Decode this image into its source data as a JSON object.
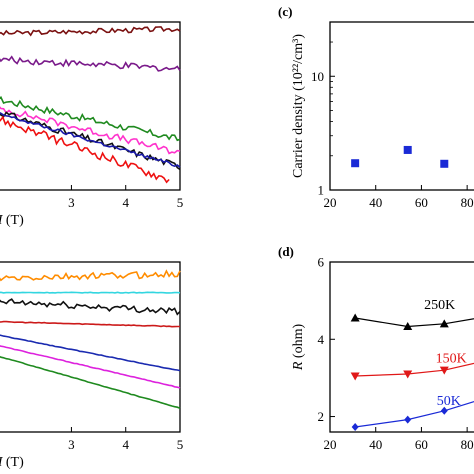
{
  "chart_data": [
    {
      "id": "a",
      "type": "line",
      "xlabel": "H (T)",
      "xlim": [
        1.5,
        5.0
      ],
      "ylim": [
        0,
        1
      ],
      "xticks": [
        3,
        4,
        5
      ],
      "tick_labels": [
        "3",
        "4",
        "5"
      ],
      "series": [
        {
          "color": "#7a1010",
          "x": [
            1.5,
            5.0
          ],
          "y": [
            0.93,
            0.96
          ],
          "noise": 0.015
        },
        {
          "color": "#7a1a8a",
          "x": [
            1.5,
            5.0
          ],
          "y": [
            0.78,
            0.72
          ],
          "noise": 0.02
        },
        {
          "color": "#1f8a1f",
          "x": [
            1.5,
            5.0
          ],
          "y": [
            0.55,
            0.3
          ],
          "noise": 0.02
        },
        {
          "color": "#ff33cc",
          "x": [
            1.5,
            5.0
          ],
          "y": [
            0.5,
            0.22
          ],
          "noise": 0.02
        },
        {
          "color": "#101010",
          "x": [
            1.5,
            5.0
          ],
          "y": [
            0.48,
            0.14
          ],
          "noise": 0.02
        },
        {
          "color": "#1a1aaa",
          "x": [
            1.5,
            5.0
          ],
          "y": [
            0.47,
            0.14
          ],
          "noise": 0.01
        },
        {
          "color": "#ee1111",
          "x": [
            1.5,
            4.8
          ],
          "y": [
            0.44,
            0.06
          ],
          "noise": 0.025
        }
      ]
    },
    {
      "id": "b",
      "type": "line",
      "xlabel": "H (T)",
      "xlim": [
        1.5,
        5.0
      ],
      "ylim": [
        0,
        1
      ],
      "xticks": [
        3,
        4,
        5
      ],
      "tick_labels": [
        "3",
        "4",
        "5"
      ],
      "series": [
        {
          "color": "#ff8c00",
          "x": [
            1.5,
            5.0
          ],
          "y": [
            0.9,
            0.93
          ],
          "noise": 0.02
        },
        {
          "color": "#33d6e0",
          "x": [
            1.5,
            5.0
          ],
          "y": [
            0.82,
            0.82
          ],
          "noise": 0.004
        },
        {
          "color": "#101010",
          "x": [
            1.5,
            5.0
          ],
          "y": [
            0.77,
            0.71
          ],
          "noise": 0.02
        },
        {
          "color": "#cc1a1a",
          "x": [
            1.5,
            5.0
          ],
          "y": [
            0.65,
            0.62
          ],
          "noise": 0.004
        },
        {
          "color": "#1a2ab0",
          "x": [
            1.5,
            5.0
          ],
          "y": [
            0.58,
            0.36
          ],
          "noise": 0.003
        },
        {
          "color": "#dd22dd",
          "x": [
            1.5,
            5.0
          ],
          "y": [
            0.52,
            0.26
          ],
          "noise": 0.003
        },
        {
          "color": "#1f8a1f",
          "x": [
            1.5,
            5.0
          ],
          "y": [
            0.46,
            0.14
          ],
          "noise": 0.003
        }
      ]
    },
    {
      "id": "c",
      "type": "scatter",
      "panel_label": "(c)",
      "ylabel": "Carrier density (10²²/cm³)",
      "xlim": [
        20,
        90
      ],
      "ylim": [
        1,
        30
      ],
      "yscale": "log",
      "xticks": [
        20,
        40,
        60,
        80
      ],
      "xtick_labels": [
        "20",
        "40",
        "60",
        "80"
      ],
      "yticks": [
        1,
        10
      ],
      "ytick_labels": [
        "1",
        "10"
      ],
      "series": [
        {
          "color": "#1a2ad6",
          "marker": "square",
          "x": [
            31,
            54,
            70
          ],
          "y": [
            1.72,
            2.25,
            1.7
          ]
        }
      ]
    },
    {
      "id": "d",
      "type": "line",
      "panel_label": "(d)",
      "ylabel": "R (ohm)",
      "xlim": [
        20,
        90
      ],
      "ylim": [
        1.6,
        6
      ],
      "xticks": [
        20,
        40,
        60,
        80
      ],
      "xtick_labels": [
        "20",
        "40",
        "60",
        "80"
      ],
      "yticks": [
        2,
        4,
        6
      ],
      "ytick_labels": [
        "2",
        "4",
        "6"
      ],
      "series": [
        {
          "name": "250K",
          "color": "#000000",
          "marker": "triangle-up",
          "x": [
            31,
            54,
            70,
            92
          ],
          "y": [
            4.55,
            4.33,
            4.4,
            4.62
          ]
        },
        {
          "name": "150K",
          "color": "#e01818",
          "marker": "triangle-down",
          "x": [
            31,
            54,
            70,
            92
          ],
          "y": [
            3.05,
            3.1,
            3.2,
            3.5
          ]
        },
        {
          "name": "50K",
          "color": "#1a2ad6",
          "marker": "diamond",
          "x": [
            31,
            54,
            70,
            92
          ],
          "y": [
            1.73,
            1.92,
            2.15,
            2.55
          ]
        }
      ],
      "annotations": [
        {
          "text": "250K",
          "color": "#000000",
          "x": 68,
          "y": 4.78
        },
        {
          "text": "150K",
          "color": "#e01818",
          "x": 73,
          "y": 3.4
        },
        {
          "text": "50K",
          "color": "#1a2ad6",
          "x": 72,
          "y": 2.3
        }
      ]
    }
  ]
}
